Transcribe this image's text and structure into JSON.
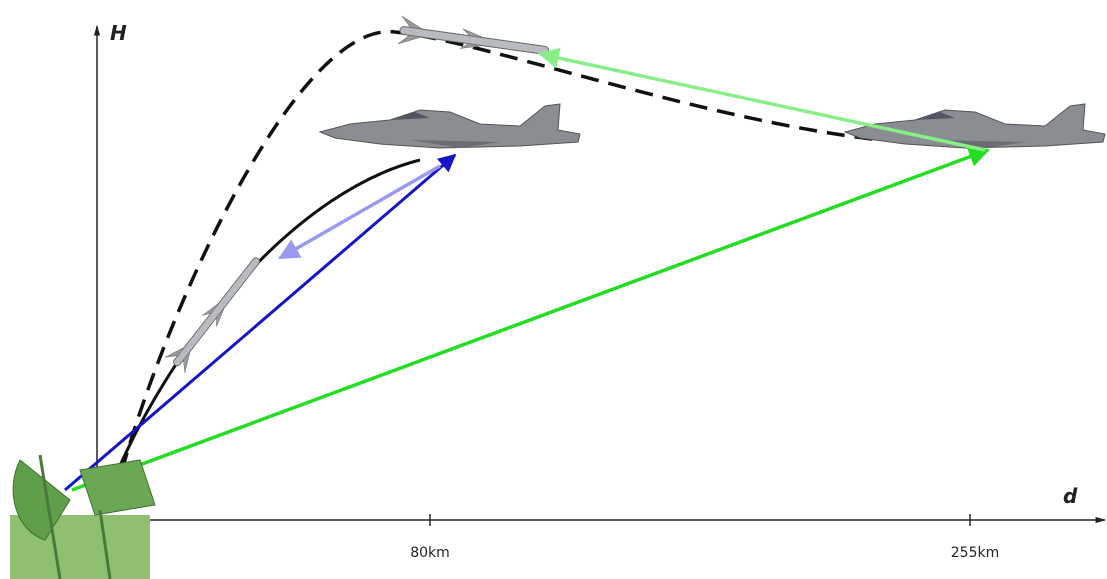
{
  "axes": {
    "y_label": "H",
    "x_label": "d"
  },
  "ticks": [
    {
      "label": "80km"
    },
    {
      "label": "255km"
    }
  ]
}
